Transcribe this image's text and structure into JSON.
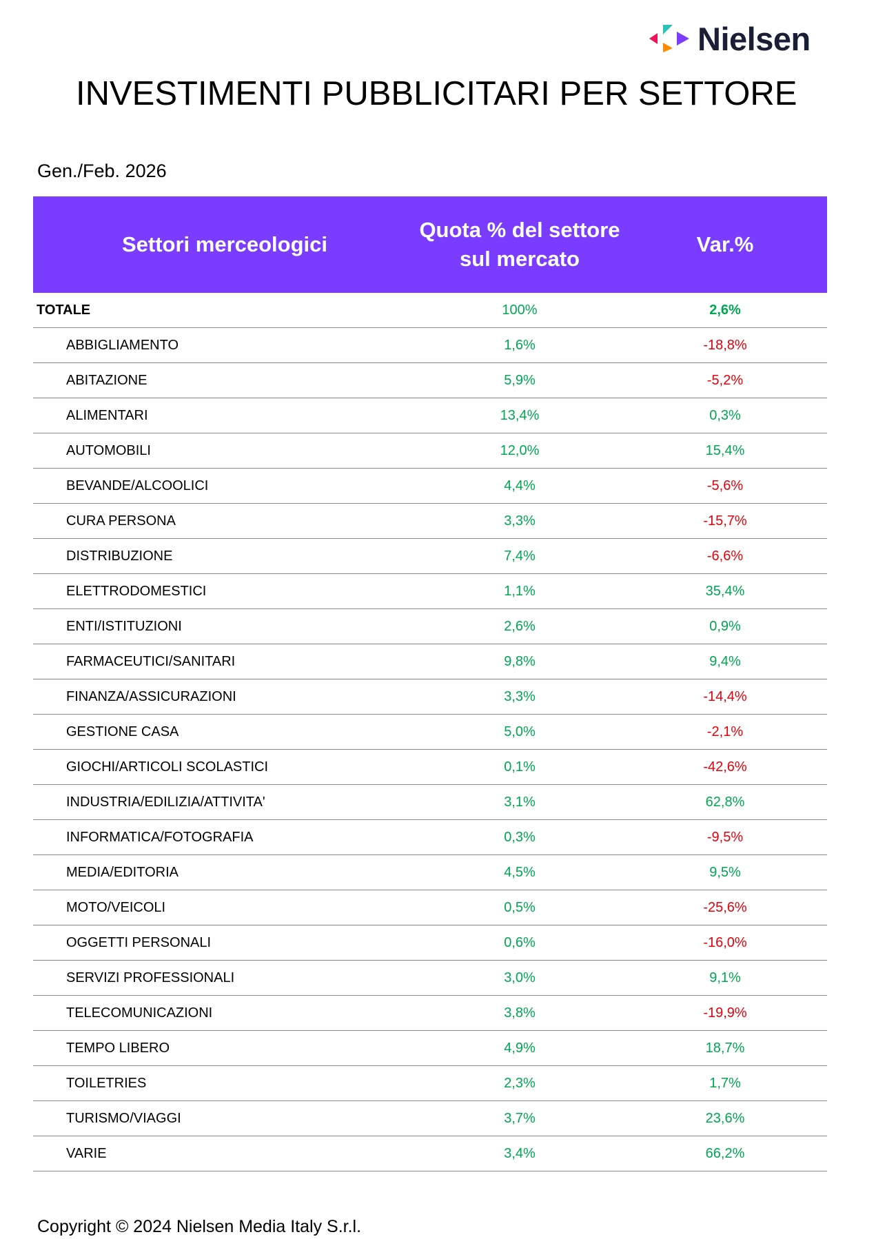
{
  "brand": {
    "name": "Nielsen",
    "logo_icon": "nielsen-arrows-icon",
    "colors": {
      "red": "#f0145a",
      "teal": "#2bc4b4",
      "orange": "#ff8a00",
      "purple": "#7a3cff",
      "text": "#1a1f36"
    }
  },
  "title": "INVESTIMENTI PUBBLICITARI PER SETTORE",
  "period": "Gen./Feb. 2026",
  "table": {
    "header_color": "#7a3cff",
    "positive_color": "#00a651",
    "negative_color": "#e8000b",
    "columns": [
      "Settori merceologici",
      "Quota % del settore sul mercato",
      "Var.%"
    ],
    "total": {
      "name": "TOTALE",
      "share": "100%",
      "change": "2,6%"
    },
    "rows": [
      {
        "name": "ABBIGLIAMENTO",
        "share": "1,6%",
        "change": "-18,8%"
      },
      {
        "name": "ABITAZIONE",
        "share": "5,9%",
        "change": "-5,2%"
      },
      {
        "name": "ALIMENTARI",
        "share": "13,4%",
        "change": "0,3%"
      },
      {
        "name": "AUTOMOBILI",
        "share": "12,0%",
        "change": "15,4%"
      },
      {
        "name": "BEVANDE/ALCOOLICI",
        "share": "4,4%",
        "change": "-5,6%"
      },
      {
        "name": "CURA PERSONA",
        "share": "3,3%",
        "change": "-15,7%"
      },
      {
        "name": "DISTRIBUZIONE",
        "share": "7,4%",
        "change": "-6,6%"
      },
      {
        "name": "ELETTRODOMESTICI",
        "share": "1,1%",
        "change": "35,4%"
      },
      {
        "name": "ENTI/ISTITUZIONI",
        "share": "2,6%",
        "change": "0,9%"
      },
      {
        "name": "FARMACEUTICI/SANITARI",
        "share": "9,8%",
        "change": "9,4%"
      },
      {
        "name": "FINANZA/ASSICURAZIONI",
        "share": "3,3%",
        "change": "-14,4%"
      },
      {
        "name": "GESTIONE CASA",
        "share": "5,0%",
        "change": "-2,1%"
      },
      {
        "name": "GIOCHI/ARTICOLI SCOLASTICI",
        "share": "0,1%",
        "change": "-42,6%"
      },
      {
        "name": "INDUSTRIA/EDILIZIA/ATTIVITA'",
        "share": "3,1%",
        "change": "62,8%"
      },
      {
        "name": "INFORMATICA/FOTOGRAFIA",
        "share": "0,3%",
        "change": "-9,5%"
      },
      {
        "name": "MEDIA/EDITORIA",
        "share": "4,5%",
        "change": "9,5%"
      },
      {
        "name": "MOTO/VEICOLI",
        "share": "0,5%",
        "change": "-25,6%"
      },
      {
        "name": "OGGETTI PERSONALI",
        "share": "0,6%",
        "change": "-16,0%"
      },
      {
        "name": "SERVIZI PROFESSIONALI",
        "share": "3,0%",
        "change": "9,1%"
      },
      {
        "name": "TELECOMUNICAZIONI",
        "share": "3,8%",
        "change": "-19,9%"
      },
      {
        "name": "TEMPO LIBERO",
        "share": "4,9%",
        "change": "18,7%"
      },
      {
        "name": "TOILETRIES",
        "share": "2,3%",
        "change": "1,7%"
      },
      {
        "name": "TURISMO/VIAGGI",
        "share": "3,7%",
        "change": "23,6%"
      },
      {
        "name": "VARIE",
        "share": "3,4%",
        "change": "66,2%"
      }
    ]
  },
  "copyright": "Copyright © 2024 Nielsen Media Italy S.r.l."
}
